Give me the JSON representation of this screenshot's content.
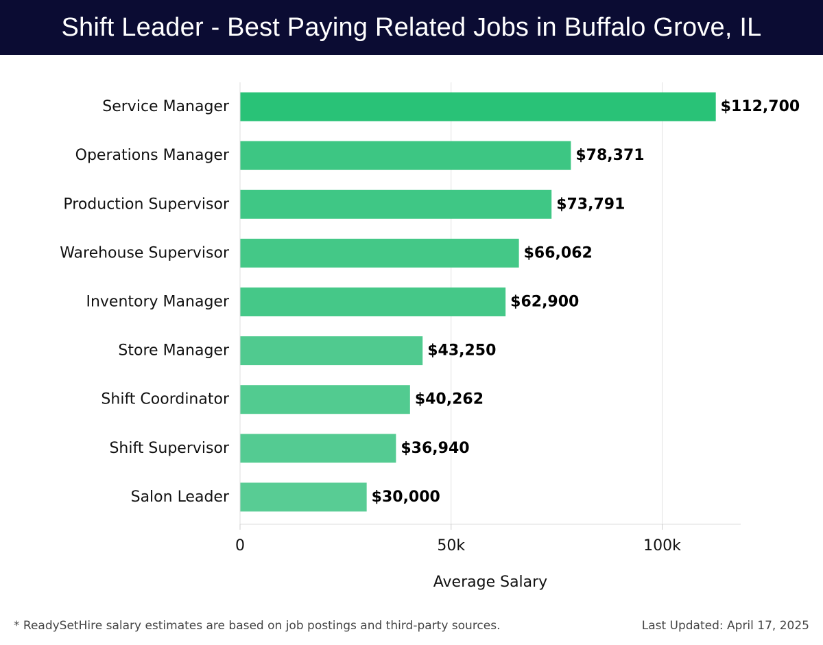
{
  "header": {
    "title": "Shift Leader - Best Paying Related Jobs in Buffalo Grove, IL"
  },
  "footer": {
    "note": "* ReadySetHire salary estimates are based on job postings and third-party sources.",
    "updated": "Last Updated: April 17, 2025"
  },
  "chart_data": {
    "type": "bar",
    "orientation": "horizontal",
    "categories": [
      "Service Manager",
      "Operations Manager",
      "Production Supervisor",
      "Warehouse Supervisor",
      "Inventory Manager",
      "Store Manager",
      "Shift Coordinator",
      "Shift Supervisor",
      "Salon Leader"
    ],
    "values": [
      112700,
      78371,
      73791,
      66062,
      62900,
      43250,
      40262,
      36940,
      30000
    ],
    "value_labels": [
      "$112,700",
      "$78,371",
      "$73,791",
      "$66,062",
      "$62,900",
      "$43,250",
      "$40,262",
      "$36,940",
      "$30,000"
    ],
    "xlabel": "Average Salary",
    "ylabel": "",
    "xlim": [
      0,
      118600
    ],
    "xticks": [
      0,
      50000,
      100000
    ],
    "xtick_labels": [
      "0",
      "50k",
      "100k"
    ],
    "grid": true,
    "bar_color_high": "#29c277",
    "bar_color_low": "#58cc94"
  }
}
